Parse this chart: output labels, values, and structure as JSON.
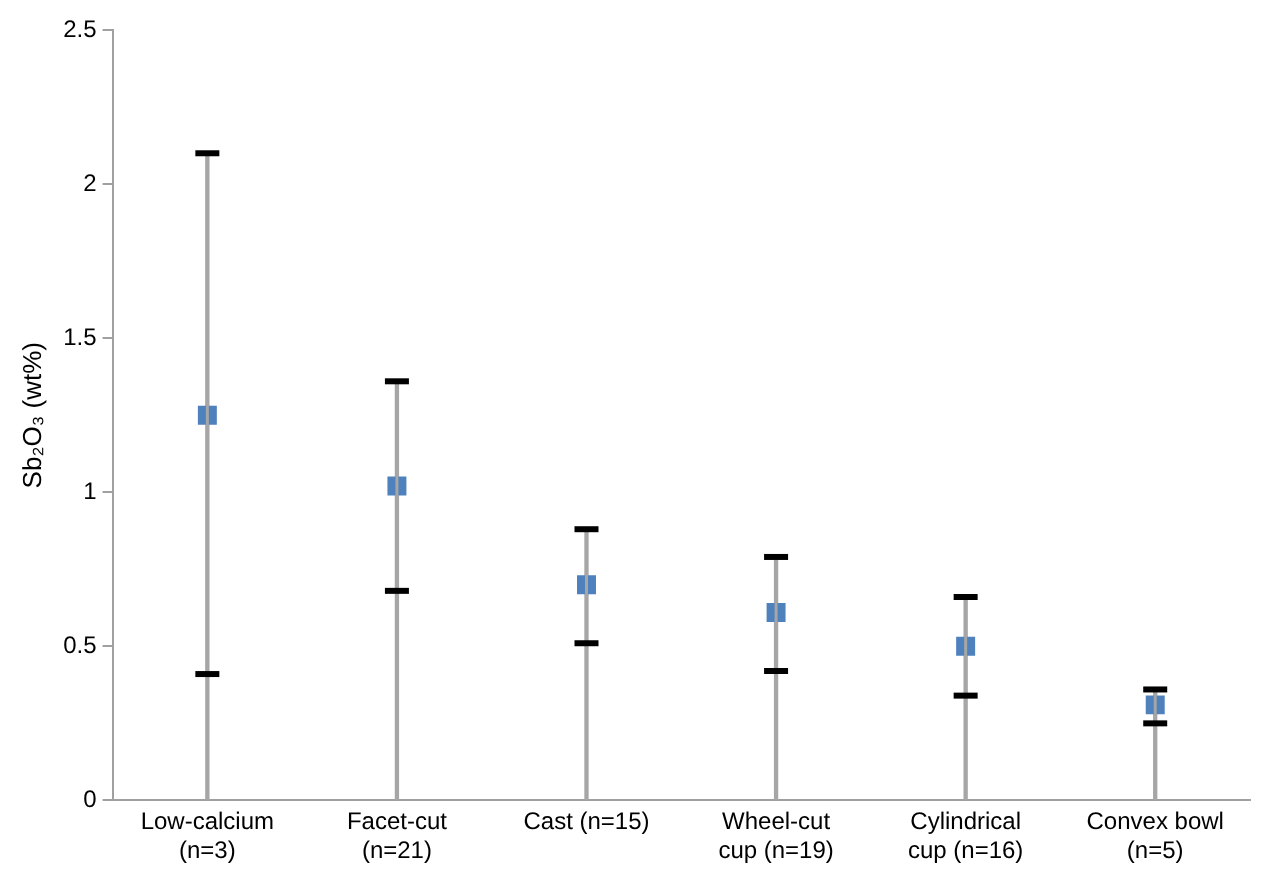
{
  "chart_data": {
    "type": "bar",
    "ylabel": "Sb₂O₃ (wt%)",
    "categories": [
      "Low-calcium (n=3)",
      "Facet-cut (n=21)",
      "Cast (n=15)",
      "Wheel-cut cup (n=19)",
      "Cylindrical cup (n=16)",
      "Convex bowl (n=5)"
    ],
    "series": [
      {
        "color": "#a6a6a6",
        "values": [
          2.1,
          1.36,
          0.88,
          0.79,
          0.66,
          0.36
        ]
      },
      {
        "type": "scatter",
        "color": "#4f81bd",
        "values": [
          1.25,
          1.02,
          0.7,
          0.61,
          0.5,
          0.31
        ],
        "errors": [
          [
            0.41,
            2.1
          ],
          [
            0.68,
            1.36
          ],
          [
            0.51,
            0.88
          ],
          [
            0.42,
            0.79
          ],
          [
            0.34,
            0.66
          ],
          [
            0.25,
            0.36
          ]
        ]
      }
    ],
    "marker": "square",
    "ylim": [
      0,
      2.5
    ],
    "yticks": [
      0,
      0.5,
      1,
      1.5,
      2,
      2.5
    ],
    "grid": false,
    "legend": false
  }
}
